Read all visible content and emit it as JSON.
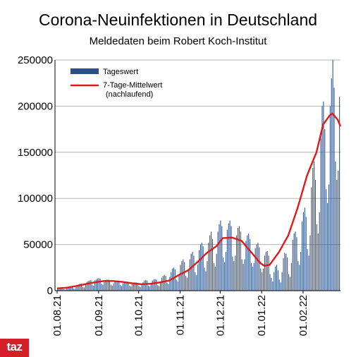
{
  "title": "Corona-Neuinfektionen in Deutschland",
  "subtitle": "Meldedaten beim Robert Koch-Institut",
  "logo": "taz",
  "colors": {
    "bars": "#2b4f86",
    "line": "#e01a1a",
    "grid": "#b3b3b3",
    "logo_bg": "#d41f28"
  },
  "chart_data": {
    "type": "bar",
    "title": "Corona-Neuinfektionen in Deutschland",
    "subtitle": "Meldedaten beim Robert Koch-Institut",
    "xlabel": "",
    "ylabel": "",
    "ylim": [
      0,
      250000
    ],
    "y_ticks": [
      0,
      50000,
      100000,
      150000,
      200000,
      250000
    ],
    "y_tick_labels": [
      "0",
      "50000",
      "100000",
      "150000",
      "200000",
      "250000"
    ],
    "x_tick_labels": [
      "01.08.21",
      "01.09.21",
      "01.10.21",
      "01.11.21",
      "01.12.21",
      "01.01.22",
      "01.02.22"
    ],
    "x_range": [
      "2021-08-01",
      "2022-02-23"
    ],
    "grid": "horizontal",
    "legend_position": "top-left",
    "series": [
      {
        "name": "Tageswert",
        "kind": "bar",
        "weekly_approx_values": [
          [
            2000,
            2500,
            2700,
            3000,
            3200,
            1500,
            1200
          ],
          [
            2800,
            3500,
            4000,
            4500,
            4700,
            2500,
            2000
          ],
          [
            5000,
            6000,
            7000,
            7500,
            7800,
            4000,
            3500
          ],
          [
            8000,
            9500,
            10500,
            11000,
            11500,
            6500,
            5500
          ],
          [
            11000,
            12000,
            13000,
            13500,
            13000,
            7500,
            6500
          ],
          [
            10500,
            11500,
            12000,
            11800,
            11500,
            6500,
            5500
          ],
          [
            8000,
            10000,
            10500,
            11000,
            10500,
            6000,
            5000
          ],
          [
            8000,
            9500,
            10000,
            9800,
            9500,
            5500,
            4500
          ],
          [
            7000,
            8500,
            9000,
            8800,
            8500,
            5000,
            4000
          ],
          [
            7000,
            9000,
            11000,
            11500,
            11000,
            5500,
            4500
          ],
          [
            8000,
            11000,
            12000,
            12500,
            12000,
            6000,
            5000
          ],
          [
            10000,
            14000,
            16000,
            17000,
            16000,
            8500,
            7000
          ],
          [
            15000,
            20000,
            24000,
            25000,
            23000,
            12000,
            10000
          ],
          [
            18000,
            28000,
            32000,
            34000,
            31000,
            16000,
            14000
          ],
          [
            22000,
            34000,
            40000,
            42000,
            38000,
            20000,
            17000
          ],
          [
            28000,
            44000,
            50000,
            52000,
            48000,
            25000,
            21000
          ],
          [
            32000,
            52000,
            60000,
            64000,
            56000,
            30000,
            26000
          ],
          [
            40000,
            64000,
            72000,
            76000,
            70000,
            36000,
            31000
          ],
          [
            42000,
            66000,
            73000,
            76000,
            70000,
            37000,
            32000
          ],
          [
            38000,
            60000,
            68000,
            70000,
            64000,
            34000,
            29000
          ],
          [
            34000,
            54000,
            60000,
            62000,
            56000,
            30000,
            26000
          ],
          [
            30000,
            46000,
            50000,
            52000,
            47000,
            24000,
            20000
          ],
          [
            24000,
            38000,
            42000,
            43000,
            38000,
            18000,
            14000
          ],
          [
            10000,
            20000,
            26000,
            28000,
            22000,
            12000,
            9000
          ],
          [
            20000,
            35000,
            41000,
            40000,
            36000,
            18000,
            15000
          ],
          [
            30000,
            55000,
            62000,
            64000,
            58000,
            32000,
            28000
          ],
          [
            42000,
            75000,
            85000,
            90000,
            80000,
            45000,
            38000
          ],
          [
            60000,
            112000,
            133000,
            140000,
            120000,
            72000,
            62000
          ],
          [
            85000,
            165000,
            200000,
            205000,
            175000,
            110000,
            95000
          ],
          [
            115000,
            200000,
            230000,
            250000,
            220000,
            140000,
            120000
          ],
          [
            130000,
            210000,
            240000,
            248000,
            225000,
            150000,
            125000
          ],
          [
            115000,
            185000,
            215000,
            210000,
            195000,
            135000,
            80000
          ],
          [
            110000,
            160000,
            235000,
            220000
          ]
        ]
      },
      {
        "name": "7-Tage-Mittelwert (nachlaufend)",
        "legend_lines": [
          "7-Tage-Mittelwert",
          "(nachlaufend)"
        ],
        "kind": "line",
        "points": [
          [
            "2021-08-01",
            2500
          ],
          [
            "2021-08-08",
            3200
          ],
          [
            "2021-08-15",
            5000
          ],
          [
            "2021-08-22",
            7000
          ],
          [
            "2021-08-29",
            9000
          ],
          [
            "2021-09-05",
            10500
          ],
          [
            "2021-09-12",
            10500
          ],
          [
            "2021-09-19",
            9500
          ],
          [
            "2021-09-26",
            8000
          ],
          [
            "2021-10-03",
            7000
          ],
          [
            "2021-10-10",
            7500
          ],
          [
            "2021-10-17",
            9000
          ],
          [
            "2021-10-24",
            11000
          ],
          [
            "2021-10-31",
            17000
          ],
          [
            "2021-11-07",
            22000
          ],
          [
            "2021-11-14",
            31000
          ],
          [
            "2021-11-21",
            41000
          ],
          [
            "2021-11-28",
            48000
          ],
          [
            "2021-12-03",
            57000
          ],
          [
            "2021-12-10",
            57500
          ],
          [
            "2021-12-17",
            54000
          ],
          [
            "2021-12-24",
            42000
          ],
          [
            "2021-12-31",
            30000
          ],
          [
            "2022-01-03",
            27000
          ],
          [
            "2022-01-07",
            28000
          ],
          [
            "2022-01-14",
            42000
          ],
          [
            "2022-01-21",
            60000
          ],
          [
            "2022-01-28",
            90000
          ],
          [
            "2022-02-04",
            125000
          ],
          [
            "2022-02-11",
            150000
          ],
          [
            "2022-02-16",
            180000
          ],
          [
            "2022-02-21",
            190000
          ],
          [
            "2022-02-23",
            192000
          ],
          [
            "2022-02-27",
            185000
          ],
          [
            "2022-03-01",
            178000
          ]
        ]
      }
    ]
  }
}
